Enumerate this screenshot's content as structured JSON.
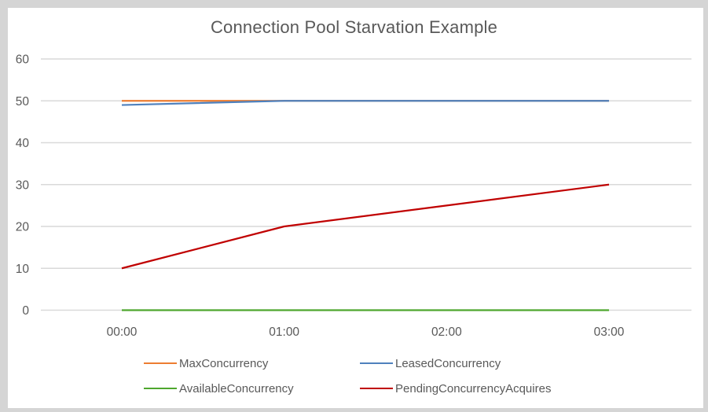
{
  "frame": {
    "background": "#d5d5d5",
    "panel_background": "#ffffff"
  },
  "chart_data": {
    "type": "line",
    "title": "Connection Pool Starvation Example",
    "categories": [
      "00:00",
      "01:00",
      "02:00",
      "03:00"
    ],
    "series": [
      {
        "name": "MaxConcurrency",
        "color": "#ED7D31",
        "values": [
          50,
          50,
          50,
          50
        ]
      },
      {
        "name": "LeasedConcurrency",
        "color": "#4F81BD",
        "values": [
          49,
          50,
          50,
          50
        ]
      },
      {
        "name": "AvailableConcurrency",
        "color": "#4EA72E",
        "values": [
          0,
          0,
          0,
          0
        ]
      },
      {
        "name": "PendingConcurrencyAcquires",
        "color": "#C00000",
        "values": [
          10,
          20,
          25,
          30
        ]
      }
    ],
    "yticks": [
      0,
      10,
      20,
      30,
      40,
      50,
      60
    ],
    "ylim": [
      0,
      60
    ],
    "xlabel": "",
    "ylabel": "",
    "grid": "horizontal",
    "gridline_color": "#D9D9D9",
    "text_color": "#595959",
    "legend_position": "bottom"
  }
}
